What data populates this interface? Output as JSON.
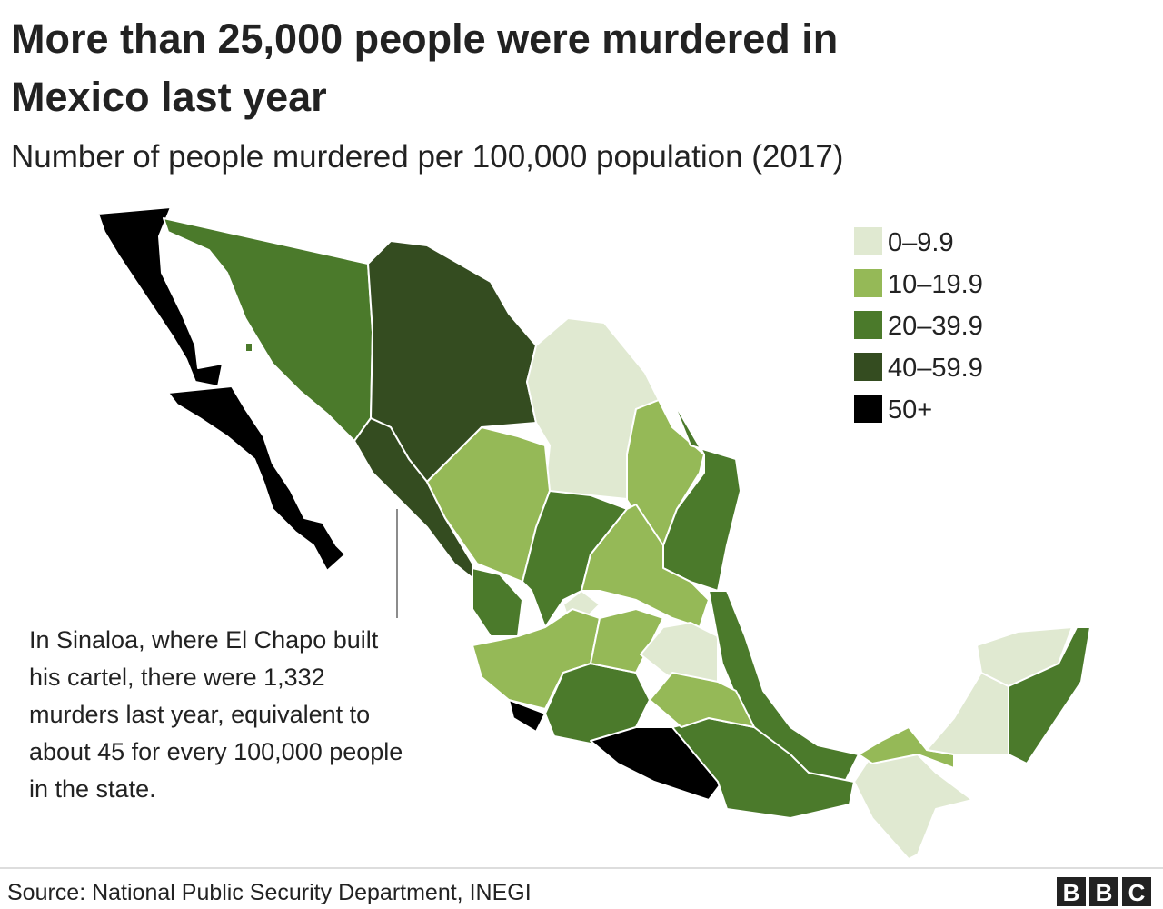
{
  "header": {
    "title_lines": [
      "More than 25,000 people were murdered in",
      "Mexico last year"
    ],
    "subtitle": "Number of people murdered per 100,000 population (2017)"
  },
  "legend": [
    {
      "label": "0–9.9",
      "color": "#e0e9d1"
    },
    {
      "label": "10–19.9",
      "color": "#95b957"
    },
    {
      "label": "20–39.9",
      "color": "#4b7a2b"
    },
    {
      "label": "40–59.9",
      "color": "#344c20"
    },
    {
      "label": "50+",
      "color": "#000000"
    }
  ],
  "annotation": {
    "lines": [
      "In Sinaloa, where El Chapo built",
      "his cartel, there were 1,332",
      "murders last year, equivalent to",
      "about 45 for every 100,000 people",
      "in the state."
    ]
  },
  "footer": {
    "source": "Source: National Public Security Department, INEGI",
    "logo": [
      "B",
      "B",
      "C"
    ]
  }
}
